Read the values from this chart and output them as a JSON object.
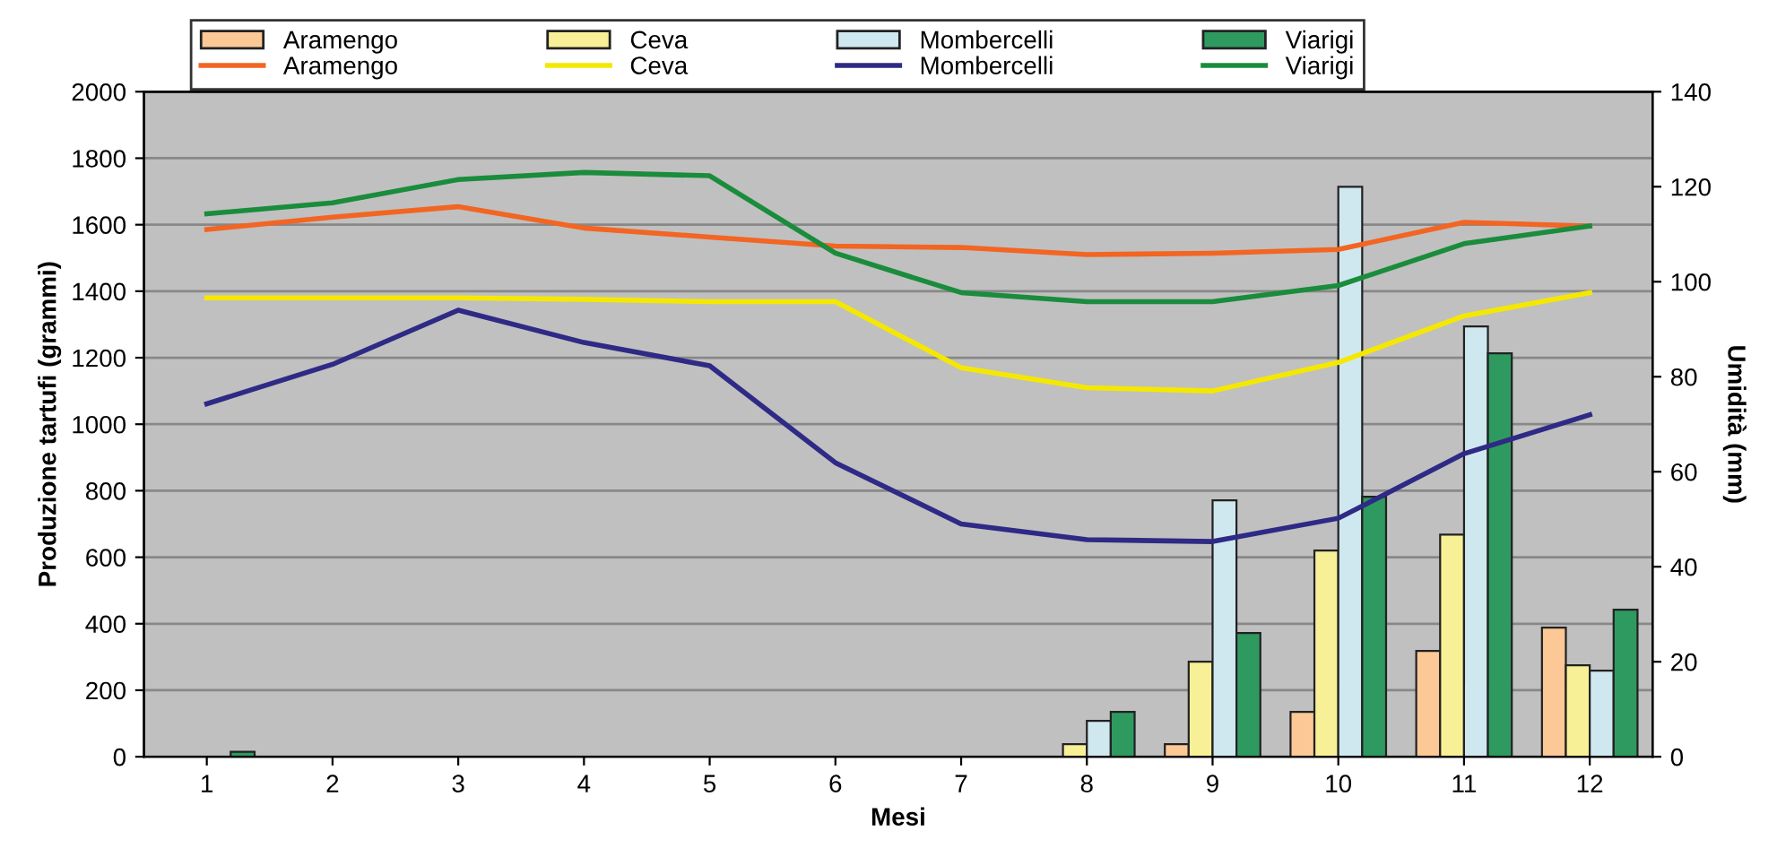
{
  "chart_data": {
    "type": "bar",
    "xlabel": "Mesi",
    "ylabel": "Produzione tartufi (grammi)",
    "y2label": "Umidità (mm)",
    "categories": [
      "1",
      "2",
      "3",
      "4",
      "5",
      "6",
      "7",
      "8",
      "9",
      "10",
      "11",
      "12"
    ],
    "ylim": [
      0,
      2000
    ],
    "yticks": [
      0,
      200,
      400,
      600,
      800,
      1000,
      1200,
      1400,
      1600,
      1800,
      2000
    ],
    "y2lim": [
      0,
      140
    ],
    "y2ticks": [
      0,
      20,
      40,
      60,
      80,
      100,
      120,
      140
    ],
    "grid": "y",
    "legend": "top",
    "series": [
      {
        "name": "Aramengo",
        "color": "#fcc896",
        "values": [
          null,
          null,
          null,
          null,
          null,
          null,
          null,
          null,
          38,
          135,
          318,
          388
        ]
      },
      {
        "name": "Ceva",
        "color": "#f8f096",
        "values": [
          null,
          null,
          null,
          null,
          null,
          null,
          null,
          38,
          286,
          620,
          668,
          275
        ]
      },
      {
        "name": "Mombercelli",
        "color": "#cfe8f0",
        "values": [
          null,
          null,
          null,
          null,
          null,
          null,
          null,
          108,
          771,
          1714,
          1294,
          259
        ]
      },
      {
        "name": "Viarigi",
        "color": "#2e9a60",
        "values": [
          15,
          null,
          null,
          null,
          null,
          null,
          null,
          135,
          372,
          782,
          1213,
          442
        ]
      },
      {
        "name": "Aramengo",
        "type": "line",
        "axis": "y2",
        "color": "#f26522",
        "values": [
          111,
          113.6,
          115.8,
          111.3,
          109.4,
          107.5,
          107.2,
          105.7,
          106,
          106.8,
          112.5,
          111.7
        ]
      },
      {
        "name": "Ceva",
        "type": "line",
        "axis": "y2",
        "color": "#f5e800",
        "values": [
          96.6,
          96.6,
          96.6,
          96.3,
          95.8,
          95.8,
          81.9,
          77.7,
          77,
          83,
          92.8,
          97.7
        ]
      },
      {
        "name": "Mombercelli",
        "type": "line",
        "axis": "y2",
        "color": "#2e2a85",
        "values": [
          74.3,
          82.6,
          94,
          87.2,
          82.3,
          61.9,
          49,
          45.7,
          45.3,
          50.2,
          63.8,
          72
        ]
      },
      {
        "name": "Viarigi",
        "type": "line",
        "axis": "y2",
        "color": "#1a8c3c",
        "values": [
          114.3,
          116.6,
          121.5,
          123,
          122.3,
          106,
          97.7,
          95.8,
          95.8,
          99.2,
          108,
          111.7
        ]
      }
    ]
  }
}
